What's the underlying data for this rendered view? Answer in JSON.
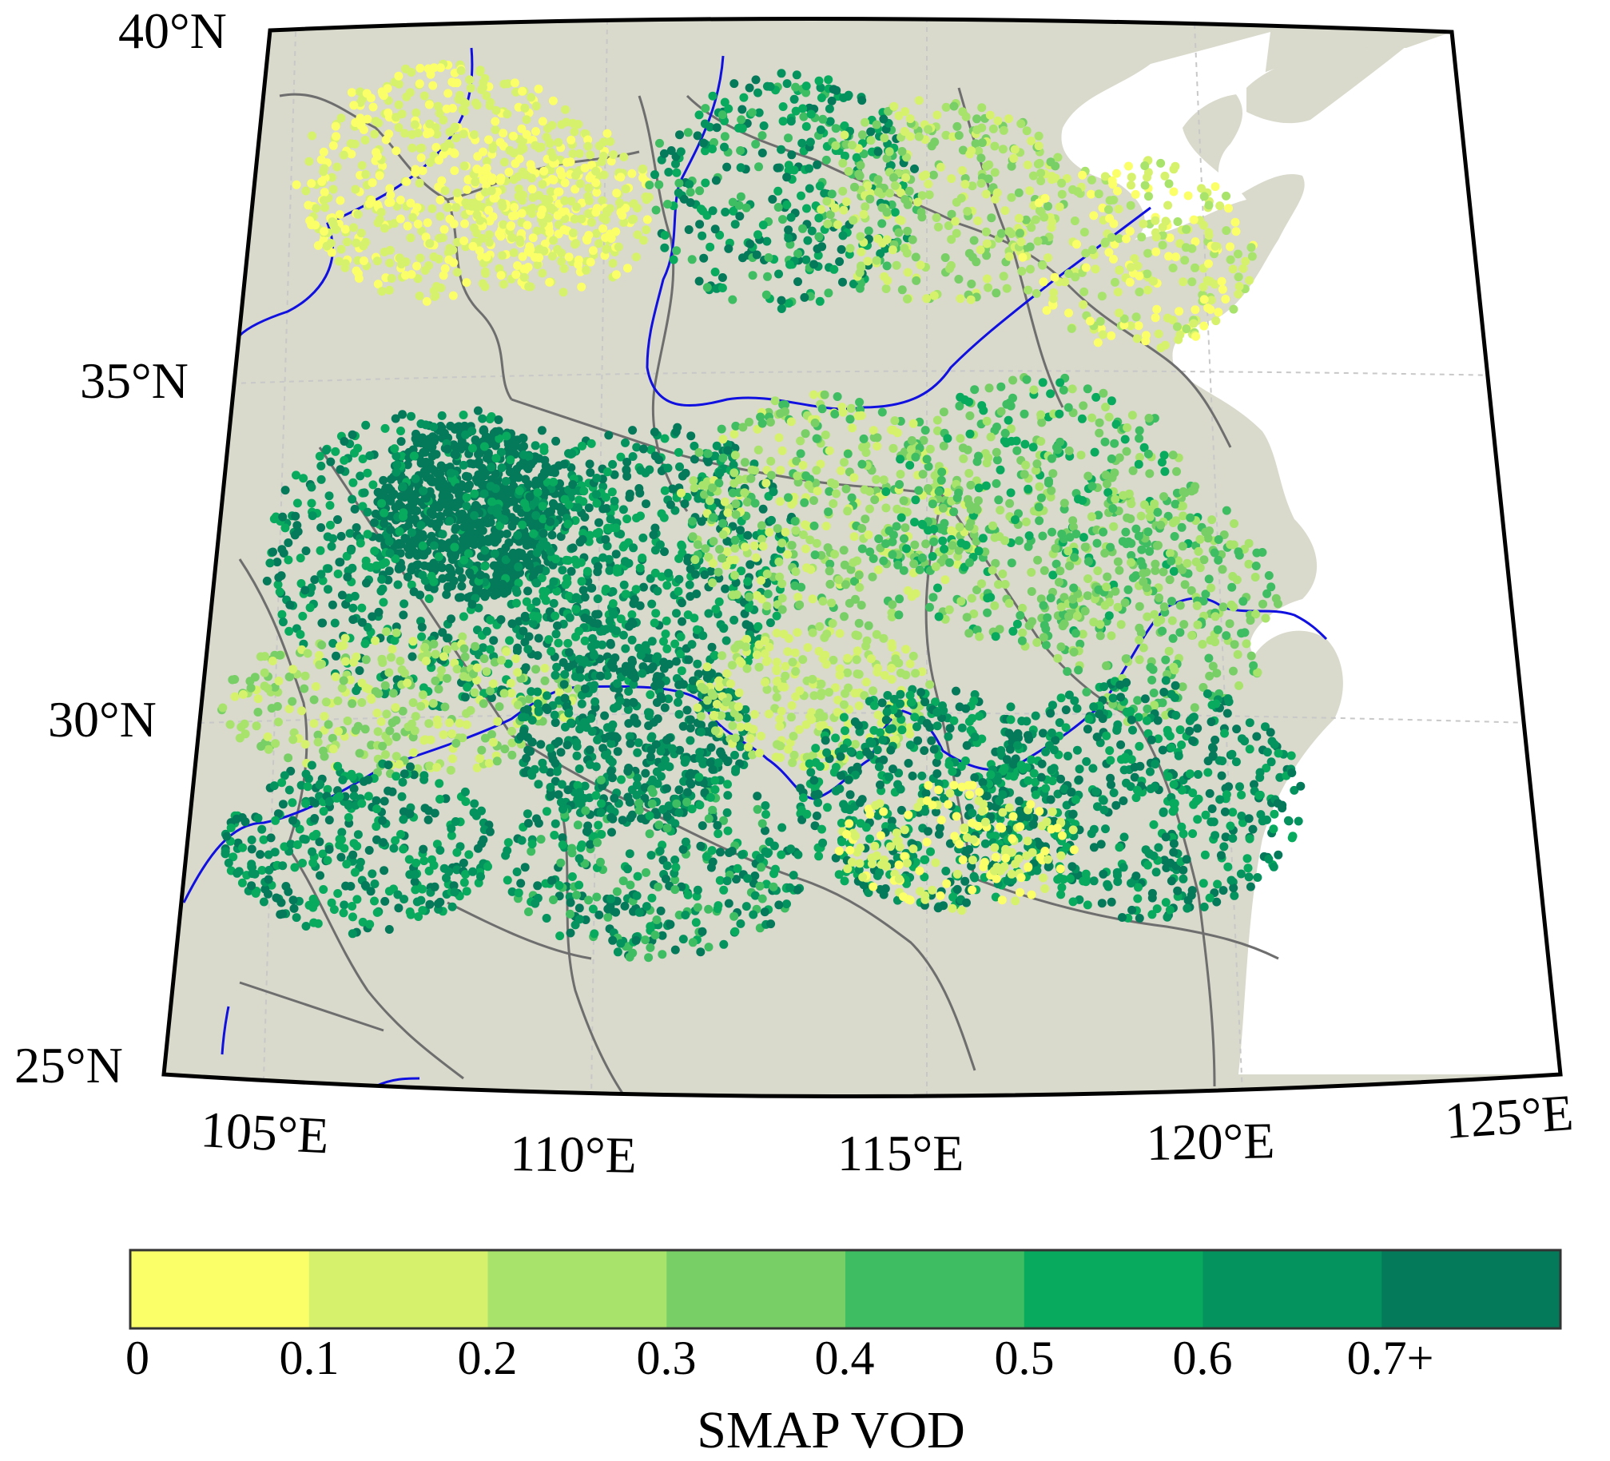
{
  "map": {
    "latitude_labels": [
      "40°N",
      "35°N",
      "30°N",
      "25°N"
    ],
    "longitude_labels": [
      "105°E",
      "110°E",
      "115°E",
      "120°E",
      "125°E"
    ],
    "colors": {
      "land": "#d9d9cc",
      "sea": "#ffffff",
      "province_border": "#6e6e6e",
      "river": "#1010e0",
      "frame": "#000000",
      "grid": "#c8c8c8"
    }
  },
  "colorbar": {
    "title": "SMAP VOD",
    "tick_labels": [
      "0",
      "0.1",
      "0.2",
      "0.3",
      "0.4",
      "0.5",
      "0.6",
      "0.7+"
    ],
    "bins": [
      {
        "min": 0.0,
        "max": 0.1,
        "color": "#fbff68"
      },
      {
        "min": 0.1,
        "max": 0.2,
        "color": "#d6f26c"
      },
      {
        "min": 0.2,
        "max": 0.3,
        "color": "#a8e36b"
      },
      {
        "min": 0.3,
        "max": 0.4,
        "color": "#78cf66"
      },
      {
        "min": 0.4,
        "max": 0.5,
        "color": "#3fbd62"
      },
      {
        "min": 0.5,
        "max": 0.6,
        "color": "#08aa5e"
      },
      {
        "min": 0.6,
        "max": 0.7,
        "color": "#04935e"
      },
      {
        "min": 0.7,
        "max": null,
        "color": "#047a5a"
      }
    ]
  }
}
